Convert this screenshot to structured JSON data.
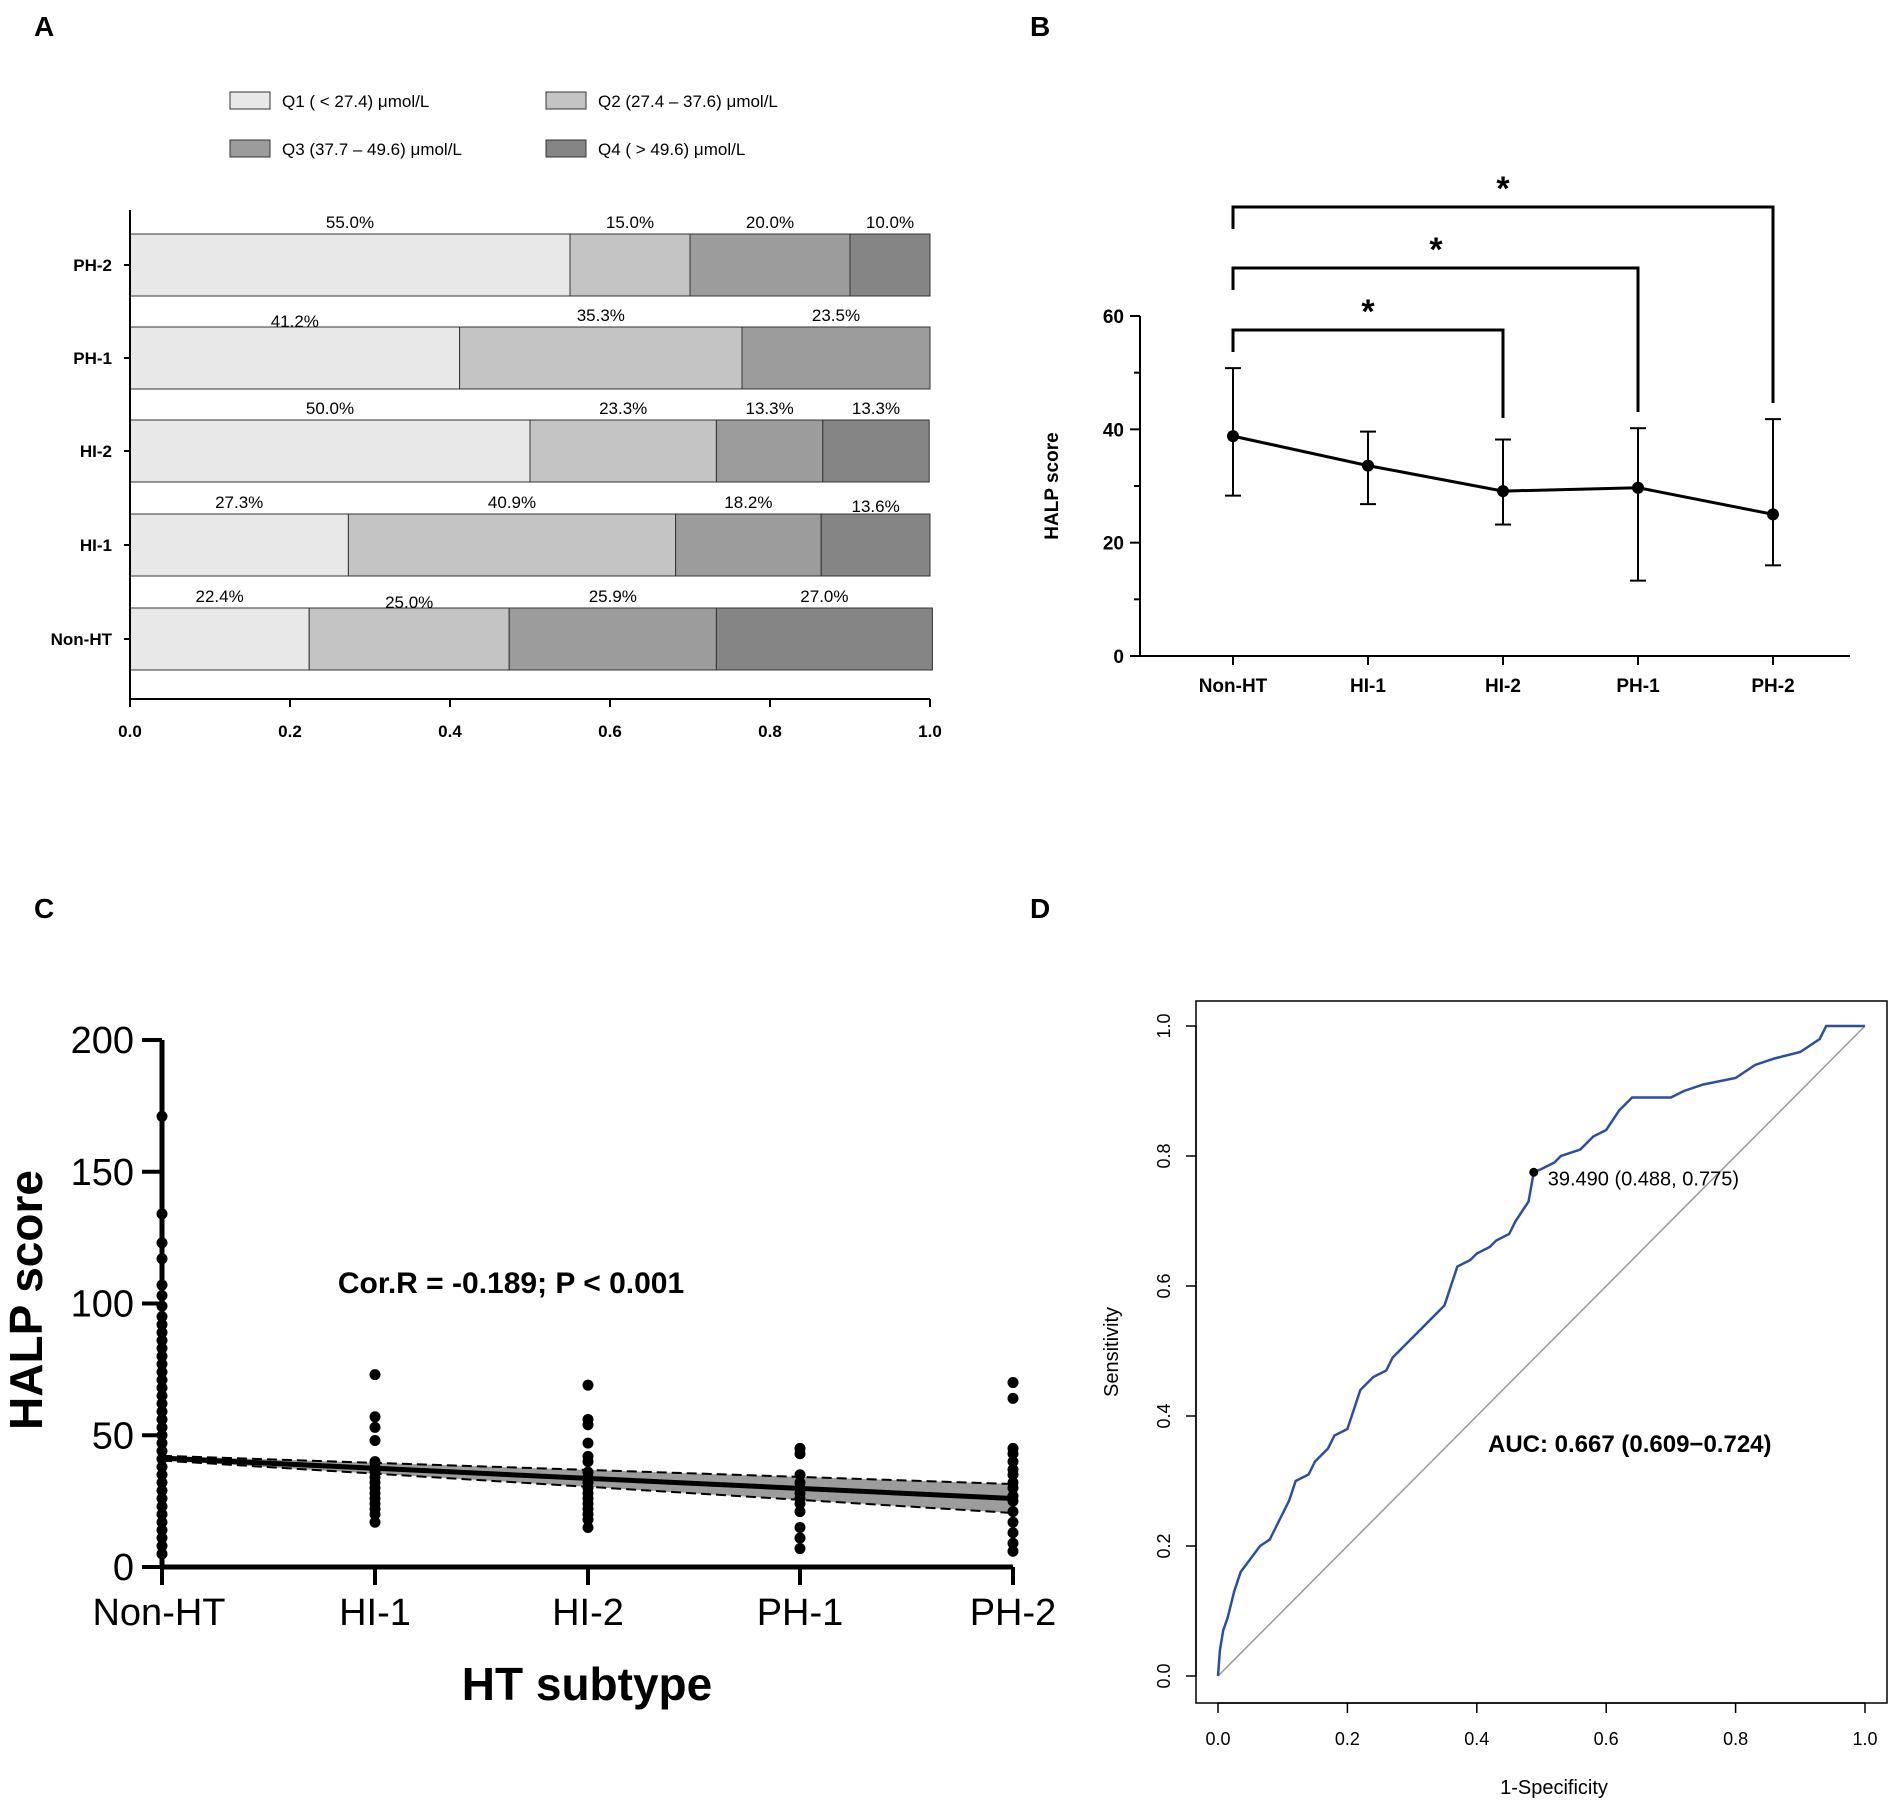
{
  "panels": {
    "a": {
      "letter": "A"
    },
    "b": {
      "letter": "B"
    },
    "c": {
      "letter": "C"
    },
    "d": {
      "letter": "D"
    }
  },
  "chart_data": [
    {
      "panel": "A",
      "type": "bar",
      "orientation": "horizontal-stacked",
      "categories": [
        "PH-2",
        "PH-1",
        "HI-2",
        "HI-1",
        "Non-HT"
      ],
      "legend": [
        {
          "label": "Q1 ( < 27.4) μmol/L",
          "color": "#e8e8e8"
        },
        {
          "label": "Q2 (27.4 – 37.6) μmol/L",
          "color": "#c4c4c4"
        },
        {
          "label": "Q3 (37.7 – 49.6) μmol/L",
          "color": "#9c9c9c"
        },
        {
          "label": "Q4 ( > 49.6) μmol/L",
          "color": "#858585"
        }
      ],
      "series": [
        {
          "name": "Q1",
          "values": [
            0.55,
            0.412,
            0.5,
            0.273,
            0.224
          ]
        },
        {
          "name": "Q2",
          "values": [
            0.15,
            0.353,
            0.233,
            0.409,
            0.25
          ]
        },
        {
          "name": "Q3",
          "values": [
            0.2,
            0.235,
            0.133,
            0.182,
            0.259
          ]
        },
        {
          "name": "Q4",
          "values": [
            0.1,
            0.0,
            0.133,
            0.136,
            0.27
          ]
        }
      ],
      "labels": [
        [
          "55.0%",
          "15.0%",
          "20.0%",
          "10.0%"
        ],
        [
          "41.2%",
          "35.3%",
          "23.5%"
        ],
        [
          "50.0%",
          "23.3%",
          "13.3%",
          "13.3%"
        ],
        [
          "27.3%",
          "40.9%",
          "18.2%",
          "13.6%"
        ],
        [
          "22.4%",
          "25.0%",
          "25.9%",
          "27.0%"
        ]
      ],
      "xlim": [
        0,
        1
      ],
      "xticks": [
        "0.0",
        "0.2",
        "0.4",
        "0.6",
        "0.8",
        "1.0"
      ]
    },
    {
      "panel": "B",
      "type": "line",
      "categories": [
        "Non-HT",
        "HI-1",
        "HI-2",
        "PH-1",
        "PH-2"
      ],
      "values": [
        38.8,
        33.6,
        29.1,
        29.7,
        25.0
      ],
      "err_low": [
        28.3,
        26.8,
        23.2,
        13.3,
        16.0
      ],
      "err_high": [
        50.8,
        39.6,
        38.2,
        40.2,
        41.8
      ],
      "ylabel": "HALP score",
      "ylim": [
        0,
        60
      ],
      "yticks": [
        "0",
        "20",
        "40",
        "60"
      ],
      "significance": [
        {
          "from": "Non-HT",
          "to": "HI-2",
          "label": "*"
        },
        {
          "from": "Non-HT",
          "to": "PH-1",
          "label": "*"
        },
        {
          "from": "Non-HT",
          "to": "PH-2",
          "label": "*"
        }
      ]
    },
    {
      "panel": "C",
      "type": "scatter",
      "categories": [
        "Non-HT",
        "HI-1",
        "HI-2",
        "PH-1",
        "PH-2"
      ],
      "points": [
        [
          171,
          134,
          123,
          117,
          107,
          103,
          99,
          95,
          92,
          89,
          86,
          83,
          80,
          77,
          74,
          71,
          68,
          65,
          62,
          59,
          56,
          53,
          50,
          47,
          44,
          41,
          38,
          35,
          32,
          29,
          26,
          23,
          20,
          17,
          14,
          11,
          8,
          5
        ],
        [
          73,
          57,
          53,
          48,
          40,
          38,
          36,
          34,
          32,
          30,
          28,
          26,
          24,
          22,
          20,
          17
        ],
        [
          69,
          56,
          54,
          47,
          42,
          40,
          36,
          34,
          32,
          30,
          28,
          26,
          24,
          22,
          20,
          18,
          15
        ],
        [
          45,
          43,
          35,
          32,
          30,
          28,
          26,
          24,
          21,
          15,
          11,
          7
        ],
        [
          70,
          64,
          45,
          43,
          40,
          37,
          35,
          32,
          30,
          27,
          25,
          21,
          17,
          13,
          9,
          6
        ]
      ],
      "fit": {
        "start": 41.3,
        "end": 26.0,
        "ci_low_start": 40.4,
        "ci_low_end": 20.5,
        "ci_high_start": 42.2,
        "ci_high_end": 31.5
      },
      "xlabel": "HT subtype",
      "ylabel": "HALP score",
      "ylim": [
        0,
        200
      ],
      "yticks": [
        "0",
        "50",
        "100",
        "150",
        "200"
      ],
      "annotation": "Cor.R = -0.189; P < 0.001"
    },
    {
      "panel": "D",
      "type": "line",
      "roc_curve": [
        [
          0,
          0
        ],
        [
          0.003,
          0.04
        ],
        [
          0.008,
          0.07
        ],
        [
          0.015,
          0.09
        ],
        [
          0.025,
          0.13
        ],
        [
          0.035,
          0.16
        ],
        [
          0.05,
          0.18
        ],
        [
          0.065,
          0.2
        ],
        [
          0.08,
          0.21
        ],
        [
          0.09,
          0.23
        ],
        [
          0.1,
          0.25
        ],
        [
          0.11,
          0.27
        ],
        [
          0.12,
          0.3
        ],
        [
          0.14,
          0.31
        ],
        [
          0.15,
          0.33
        ],
        [
          0.17,
          0.35
        ],
        [
          0.18,
          0.37
        ],
        [
          0.2,
          0.38
        ],
        [
          0.21,
          0.41
        ],
        [
          0.22,
          0.44
        ],
        [
          0.24,
          0.46
        ],
        [
          0.26,
          0.47
        ],
        [
          0.27,
          0.49
        ],
        [
          0.29,
          0.51
        ],
        [
          0.31,
          0.53
        ],
        [
          0.33,
          0.55
        ],
        [
          0.35,
          0.57
        ],
        [
          0.36,
          0.6
        ],
        [
          0.37,
          0.63
        ],
        [
          0.39,
          0.64
        ],
        [
          0.4,
          0.65
        ],
        [
          0.42,
          0.66
        ],
        [
          0.43,
          0.67
        ],
        [
          0.45,
          0.68
        ],
        [
          0.46,
          0.7
        ],
        [
          0.48,
          0.73
        ],
        [
          0.488,
          0.775
        ],
        [
          0.5,
          0.78
        ],
        [
          0.52,
          0.79
        ],
        [
          0.53,
          0.8
        ],
        [
          0.56,
          0.81
        ],
        [
          0.58,
          0.83
        ],
        [
          0.6,
          0.84
        ],
        [
          0.62,
          0.87
        ],
        [
          0.64,
          0.89
        ],
        [
          0.7,
          0.89
        ],
        [
          0.72,
          0.9
        ],
        [
          0.75,
          0.91
        ],
        [
          0.8,
          0.92
        ],
        [
          0.83,
          0.94
        ],
        [
          0.86,
          0.95
        ],
        [
          0.9,
          0.96
        ],
        [
          0.93,
          0.98
        ],
        [
          0.94,
          1.0
        ],
        [
          1.0,
          1.0
        ]
      ],
      "cutoff_point": [
        0.488,
        0.775
      ],
      "cutoff_label": "39.490 (0.488, 0.775)",
      "auc_label": "AUC: 0.667 (0.609−0.724)",
      "xlabel": "1-Specificity",
      "ylabel": "Sensitivity",
      "xlim": [
        0,
        1
      ],
      "ylim": [
        0,
        1
      ],
      "xticks": [
        "0.0",
        "0.2",
        "0.4",
        "0.6",
        "0.8",
        "1.0"
      ],
      "yticks": [
        "0.0",
        "0.2",
        "0.4",
        "0.6",
        "0.8",
        "1.0"
      ],
      "curve_color": "#2a4fa0"
    }
  ]
}
